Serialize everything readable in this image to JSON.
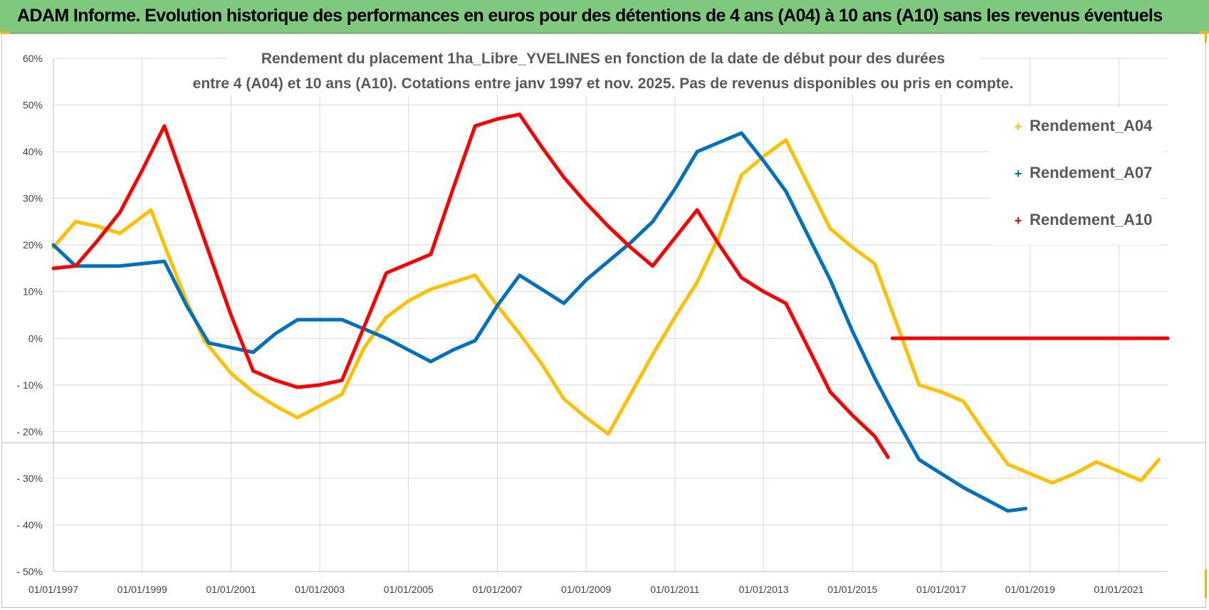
{
  "header": {
    "title": "ADAM Informe. Evolution historique des performances en euros pour des détentions de 4 ans (A04) à 10 ans (A10) sans les revenus éventuels"
  },
  "chart_data": {
    "type": "line",
    "title": [
      "Rendement du placement 1ha_Libre_YVELINES en fonction de la date de début pour des durées",
      "entre 4 (A04) et 10 ans (A10).  Cotations entre janv 1997  et  nov. 2025.  Pas de revenus disponibles ou pris en compte."
    ],
    "xlabel": "",
    "ylabel": "",
    "x_range": [
      1997.0,
      2022.1
    ],
    "ylim": [
      -50,
      60
    ],
    "y_ticks": [
      60,
      50,
      40,
      30,
      20,
      10,
      0,
      -10,
      -20,
      -30,
      -40,
      -50
    ],
    "y_tick_labels": [
      "60%",
      "50%",
      "40%",
      "30%",
      "20%",
      "10%",
      "0%",
      "- 10%",
      "- 20%",
      "- 30%",
      "- 40%",
      "- 50%"
    ],
    "x_ticks": [
      1997,
      1999,
      2001,
      2003,
      2005,
      2007,
      2009,
      2011,
      2013,
      2015,
      2017,
      2019,
      2021
    ],
    "x_tick_labels": [
      "01/01/1997",
      "01/01/1999",
      "01/01/2001",
      "01/01/2003",
      "01/01/2005",
      "01/01/2007",
      "01/01/2009",
      "01/01/2011",
      "01/01/2013",
      "01/01/2015",
      "01/01/2017",
      "01/01/2019",
      "01/01/2021"
    ],
    "grid": true,
    "legend_position": "right",
    "series": [
      {
        "name": "Rendement_A04",
        "color": "#ffc000",
        "points": [
          [
            1997.0,
            19.5
          ],
          [
            1997.5,
            25.0
          ],
          [
            1998.0,
            24.0
          ],
          [
            1998.5,
            22.5
          ],
          [
            1999.2,
            27.5
          ],
          [
            1999.5,
            20.0
          ],
          [
            2000.0,
            8.0
          ],
          [
            2000.4,
            -0.5
          ],
          [
            2001.0,
            -7.5
          ],
          [
            2001.5,
            -11.5
          ],
          [
            2002.0,
            -14.5
          ],
          [
            2002.5,
            -17.0
          ],
          [
            2003.0,
            -14.5
          ],
          [
            2003.5,
            -12.0
          ],
          [
            2004.0,
            -2.0
          ],
          [
            2004.5,
            4.5
          ],
          [
            2005.0,
            8.0
          ],
          [
            2005.5,
            10.5
          ],
          [
            2006.0,
            12.0
          ],
          [
            2006.5,
            13.5
          ],
          [
            2007.0,
            7.0
          ],
          [
            2007.5,
            1.0
          ],
          [
            2008.0,
            -5.5
          ],
          [
            2008.5,
            -13.0
          ],
          [
            2009.0,
            -17.0
          ],
          [
            2009.5,
            -20.5
          ],
          [
            2010.0,
            -12.0
          ],
          [
            2010.5,
            -3.5
          ],
          [
            2011.0,
            4.5
          ],
          [
            2011.5,
            12.0
          ],
          [
            2012.0,
            22.0
          ],
          [
            2012.5,
            35.0
          ],
          [
            2013.0,
            39.0
          ],
          [
            2013.5,
            42.5
          ],
          [
            2014.0,
            33.0
          ],
          [
            2014.5,
            23.5
          ],
          [
            2015.0,
            19.5
          ],
          [
            2015.5,
            16.0
          ],
          [
            2016.0,
            3.0
          ],
          [
            2016.5,
            -10.0
          ],
          [
            2017.0,
            -11.5
          ],
          [
            2017.5,
            -13.5
          ],
          [
            2018.0,
            -20.5
          ],
          [
            2018.5,
            -27.0
          ],
          [
            2019.0,
            -29.0
          ],
          [
            2019.5,
            -31.0
          ],
          [
            2020.0,
            -29.0
          ],
          [
            2020.5,
            -26.5
          ],
          [
            2021.0,
            -28.5
          ],
          [
            2021.5,
            -30.5
          ],
          [
            2021.9,
            -26.0
          ]
        ]
      },
      {
        "name": "Rendement_A07",
        "color": "#0070c0",
        "points": [
          [
            1997.0,
            20.0
          ],
          [
            1997.5,
            15.5
          ],
          [
            1998.0,
            15.5
          ],
          [
            1998.5,
            15.5
          ],
          [
            1999.0,
            16.0
          ],
          [
            1999.5,
            16.5
          ],
          [
            2000.0,
            7.0
          ],
          [
            2000.5,
            -1.0
          ],
          [
            2001.0,
            -2.0
          ],
          [
            2001.5,
            -3.0
          ],
          [
            2002.0,
            1.0
          ],
          [
            2002.5,
            4.0
          ],
          [
            2003.0,
            4.0
          ],
          [
            2003.5,
            4.0
          ],
          [
            2004.0,
            2.0
          ],
          [
            2004.5,
            0.0
          ],
          [
            2005.0,
            -2.5
          ],
          [
            2005.5,
            -5.0
          ],
          [
            2006.0,
            -2.5
          ],
          [
            2006.5,
            -0.5
          ],
          [
            2007.0,
            7.0
          ],
          [
            2007.5,
            13.5
          ],
          [
            2008.0,
            10.5
          ],
          [
            2008.5,
            7.5
          ],
          [
            2009.0,
            12.5
          ],
          [
            2009.5,
            16.5
          ],
          [
            2010.0,
            20.5
          ],
          [
            2010.5,
            25.0
          ],
          [
            2011.0,
            32.0
          ],
          [
            2011.5,
            40.0
          ],
          [
            2012.0,
            42.0
          ],
          [
            2012.5,
            44.0
          ],
          [
            2013.0,
            38.0
          ],
          [
            2013.5,
            31.5
          ],
          [
            2014.0,
            22.0
          ],
          [
            2014.5,
            12.5
          ],
          [
            2015.0,
            1.5
          ],
          [
            2015.5,
            -8.5
          ],
          [
            2016.0,
            -17.5
          ],
          [
            2016.5,
            -26.0
          ],
          [
            2017.0,
            -29.0
          ],
          [
            2017.5,
            -32.0
          ],
          [
            2018.0,
            -34.5
          ],
          [
            2018.5,
            -37.0
          ],
          [
            2018.9,
            -36.5
          ]
        ]
      },
      {
        "name": "Rendement_A10",
        "color": "#ff0000",
        "points": [
          [
            1997.0,
            15.0
          ],
          [
            1997.5,
            15.5
          ],
          [
            1998.0,
            21.0
          ],
          [
            1998.5,
            27.0
          ],
          [
            1999.0,
            36.0
          ],
          [
            1999.5,
            45.5
          ],
          [
            2000.0,
            32.0
          ],
          [
            2000.5,
            18.5
          ],
          [
            2001.0,
            5.0
          ],
          [
            2001.5,
            -7.0
          ],
          [
            2002.0,
            -9.0
          ],
          [
            2002.5,
            -10.5
          ],
          [
            2003.0,
            -10.0
          ],
          [
            2003.5,
            -9.0
          ],
          [
            2004.0,
            2.5
          ],
          [
            2004.5,
            14.0
          ],
          [
            2005.0,
            16.0
          ],
          [
            2005.5,
            18.0
          ],
          [
            2006.0,
            32.0
          ],
          [
            2006.5,
            45.5
          ],
          [
            2007.0,
            47.0
          ],
          [
            2007.5,
            48.0
          ],
          [
            2008.0,
            41.0
          ],
          [
            2008.5,
            34.5
          ],
          [
            2009.0,
            29.0
          ],
          [
            2009.5,
            24.0
          ],
          [
            2010.0,
            19.5
          ],
          [
            2010.5,
            15.5
          ],
          [
            2011.0,
            21.5
          ],
          [
            2011.5,
            27.5
          ],
          [
            2012.0,
            20.0
          ],
          [
            2012.5,
            13.0
          ],
          [
            2013.0,
            10.0
          ],
          [
            2013.5,
            7.5
          ],
          [
            2014.0,
            -2.0
          ],
          [
            2014.5,
            -11.5
          ],
          [
            2015.0,
            -16.5
          ],
          [
            2015.5,
            -21.0
          ],
          [
            2015.8,
            -25.5
          ]
        ]
      },
      {
        "name": "Rendement_A10",
        "color": "#ff0000",
        "legend": false,
        "points": [
          [
            2015.9,
            0.0
          ],
          [
            2022.1,
            0.0
          ]
        ]
      }
    ]
  }
}
